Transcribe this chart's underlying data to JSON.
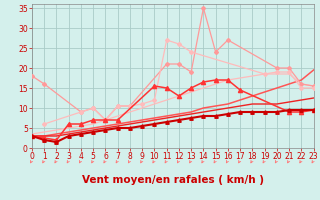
{
  "bg_color": "#d4f0ec",
  "grid_color": "#aaccc8",
  "xlim": [
    0,
    23
  ],
  "ylim": [
    0,
    36
  ],
  "ytick_vals": [
    0,
    5,
    10,
    15,
    20,
    25,
    30,
    35
  ],
  "xtick_vals": [
    0,
    1,
    2,
    3,
    4,
    5,
    6,
    7,
    8,
    9,
    10,
    11,
    12,
    13,
    14,
    15,
    16,
    17,
    18,
    19,
    20,
    21,
    22,
    23
  ],
  "xlabel": "Vent moyen/en rafales ( km/h )",
  "tick_color": "#cc0000",
  "tick_fontsize": 5.5,
  "xlabel_fontsize": 7.5,
  "lines": [
    {
      "color": "#ff9999",
      "lw": 0.9,
      "marker": "D",
      "ms": 2.0,
      "x": [
        0,
        1,
        4,
        5,
        6,
        7,
        8,
        11,
        12,
        13,
        14,
        15,
        16,
        20,
        21,
        22,
        23
      ],
      "y": [
        18,
        16,
        9,
        10,
        7,
        10.5,
        10.5,
        21,
        21,
        19,
        35,
        24,
        27,
        20,
        20,
        16,
        15.5
      ]
    },
    {
      "color": "#ffbbbb",
      "lw": 0.9,
      "marker": "D",
      "ms": 2.0,
      "x": [
        1,
        4,
        5,
        6,
        7,
        8,
        9,
        10,
        11,
        12,
        13,
        19,
        20,
        21,
        22,
        23
      ],
      "y": [
        6,
        9,
        10,
        7,
        10.5,
        10.5,
        11,
        12,
        27,
        26,
        24,
        18.5,
        19,
        19,
        15,
        15
      ]
    },
    {
      "color": "#ff3333",
      "lw": 1.1,
      "marker": "^",
      "ms": 3.0,
      "x": [
        0,
        1,
        2,
        3,
        4,
        5,
        6,
        7,
        10,
        11,
        12,
        13,
        14,
        15,
        16,
        17,
        21,
        22,
        23
      ],
      "y": [
        3,
        2.5,
        2,
        6,
        6,
        7,
        7,
        7,
        15.5,
        15,
        13,
        15,
        16.5,
        17,
        17,
        14.5,
        9,
        9,
        9.5
      ]
    },
    {
      "color": "#cc0000",
      "lw": 1.5,
      "marker": "^",
      "ms": 2.5,
      "x": [
        0,
        1,
        2,
        3,
        4,
        5,
        6,
        7,
        8,
        9,
        10,
        11,
        12,
        13,
        14,
        15,
        16,
        17,
        18,
        19,
        20,
        21,
        22,
        23
      ],
      "y": [
        3,
        2,
        1.5,
        3,
        3.5,
        4,
        4.5,
        5,
        5,
        5.5,
        6,
        6.5,
        7,
        7.5,
        8,
        8,
        8.5,
        9,
        9,
        9,
        9,
        9.5,
        9.5,
        9.5
      ]
    },
    {
      "color": "#ff5555",
      "lw": 1.1,
      "marker": null,
      "ms": 0,
      "x": [
        0,
        1,
        2,
        3,
        4,
        5,
        6,
        7,
        8,
        9,
        10,
        11,
        12,
        13,
        14,
        15,
        16,
        17,
        18,
        19,
        20,
        21,
        22,
        23
      ],
      "y": [
        3,
        3,
        3.5,
        4,
        4.5,
        5,
        5.5,
        6,
        6.5,
        7,
        7.5,
        8,
        8.5,
        9,
        10,
        10.5,
        11,
        12,
        13,
        14,
        15,
        16,
        17,
        19.5
      ]
    },
    {
      "color": "#ffbbbb",
      "lw": 0.9,
      "marker": null,
      "ms": 0,
      "x": [
        0,
        1,
        2,
        3,
        4,
        5,
        6,
        7,
        8,
        9,
        10,
        11,
        12,
        13,
        14,
        15,
        16,
        17,
        18,
        19,
        20,
        21,
        22,
        23
      ],
      "y": [
        3.5,
        4,
        4.5,
        5,
        5.5,
        6,
        7,
        8,
        9,
        10,
        11,
        12,
        13,
        14,
        15,
        16,
        17,
        17.5,
        18,
        18.5,
        18.5,
        18.5,
        16,
        15.5
      ]
    },
    {
      "color": "#ee2222",
      "lw": 1.0,
      "marker": null,
      "ms": 0,
      "x": [
        0,
        1,
        2,
        3,
        4,
        5,
        6,
        7,
        8,
        9,
        10,
        11,
        12,
        13,
        14,
        15,
        16,
        17,
        18,
        19,
        20,
        21,
        22,
        23
      ],
      "y": [
        3,
        3,
        3,
        3.5,
        4,
        4.5,
        5,
        5.5,
        6,
        6.5,
        7,
        7.5,
        8,
        8.5,
        9,
        9.5,
        10,
        10.5,
        11,
        11,
        11,
        11.5,
        12,
        12.5
      ]
    }
  ],
  "arrow_color": "#ff7777"
}
